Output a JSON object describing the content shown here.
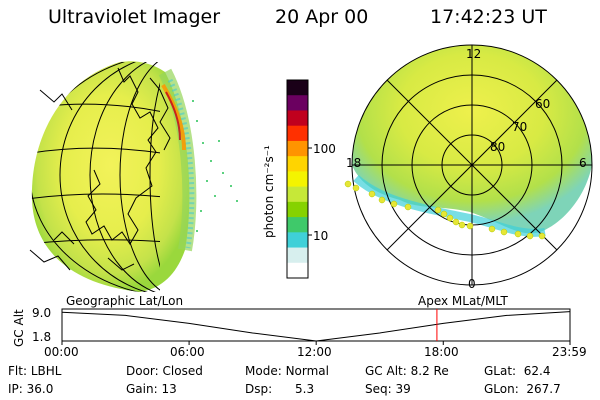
{
  "header": {
    "title": "Ultraviolet Imager",
    "date": "20 Apr 00",
    "time": "17:42:23 UT"
  },
  "colorbar": {
    "unit_label": "photon cm⁻²s⁻¹",
    "tick_labels": [
      "100",
      "10"
    ],
    "colors": [
      "#1a0018",
      "#6b0060",
      "#c0001e",
      "#ff3000",
      "#ff9400",
      "#ffd400",
      "#f4f400",
      "#c6e838",
      "#86d200",
      "#3fc96a",
      "#3fd0d8",
      "#d7efee",
      "#ffffff"
    ]
  },
  "polar": {
    "lat_labels": [
      "80",
      "70",
      "60"
    ],
    "mlt_labels": [
      "12",
      "18",
      "6",
      "0"
    ]
  },
  "panels": {
    "left_caption": "Geographic Lat/Lon",
    "right_caption": "Apex MLat/MLT"
  },
  "timeline": {
    "axis_title": "GC Alt",
    "y_ticks": [
      "9.0",
      "1.8"
    ],
    "x_ticks": [
      "00:00",
      "06:00",
      "12:00",
      "18:00",
      "23:59"
    ],
    "current_time_marker": "17:42",
    "marker_color": "#ff0000"
  },
  "status": {
    "row1": [
      {
        "label": "Flt:",
        "value": "LBHL"
      },
      {
        "label": "Door:",
        "value": "Closed"
      },
      {
        "label": "Mode:",
        "value": "Normal"
      },
      {
        "label": "GC Alt:",
        "value": "8.2 Re"
      },
      {
        "label": "GLat:",
        "value": "62.4"
      }
    ],
    "row2": [
      {
        "label": "IP:",
        "value": "36.0"
      },
      {
        "label": "Gain:",
        "value": "13"
      },
      {
        "label": "Dsp:",
        "value": "5.3"
      },
      {
        "label": "Seq:",
        "value": "39"
      },
      {
        "label": "GLon:",
        "value": "267.7"
      }
    ]
  }
}
